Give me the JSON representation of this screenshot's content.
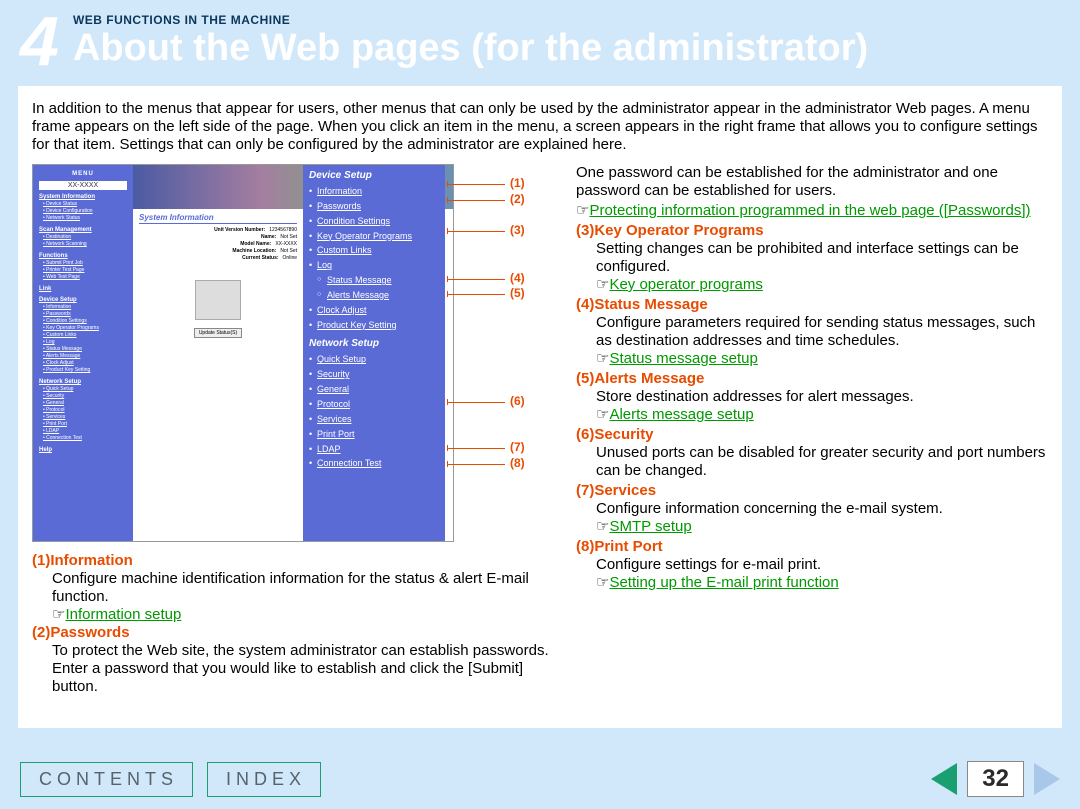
{
  "header": {
    "chapter_number": "4",
    "subtitle": "WEB FUNCTIONS IN THE MACHINE",
    "title": "About the Web pages (for the administrator)"
  },
  "intro": "In addition to the menus that appear for users, other menus that can only be used by the administrator appear in the administrator Web pages. A menu frame appears on the left side of the page. When you click an item in the menu, a screen appears in the right frame that allows you to configure settings for that item. Settings that can only be configured by the administrator are explained here.",
  "screenshot": {
    "menu_header": "MENU",
    "model": "XX-XXXX",
    "sidebar_groups": [
      {
        "title": "System Information",
        "items": [
          "Device Status",
          "Device Configuration",
          "Network Status"
        ]
      },
      {
        "title": "Scan Management",
        "items": [
          "Destination",
          "Network Scanning"
        ]
      },
      {
        "title": "Functions",
        "items": [
          "Submit Print Job",
          "Printer Test Page",
          "Web Test Page"
        ]
      },
      {
        "title": "Link",
        "items": []
      },
      {
        "title": "Device Setup",
        "items": [
          "Information",
          "Passwords",
          "Condition Settings",
          "Key Operator Programs",
          "Custom Links",
          "Log",
          "Status Message",
          "Alerts Message",
          "Clock Adjust",
          "Product Key Setting"
        ]
      },
      {
        "title": "Network Setup",
        "items": [
          "Quick Setup",
          "Security",
          "General",
          "Protocol",
          "Services",
          "Print Port",
          "LDAP",
          "Connection Test"
        ]
      },
      {
        "title": "Help",
        "items": []
      }
    ],
    "sys_info_title": "System Information",
    "sys_info_rows": [
      {
        "k": "Unit Version Number:",
        "v": "1234567890"
      },
      {
        "k": "Name:",
        "v": "Not Set"
      },
      {
        "k": "Model Name:",
        "v": "XX-XXXX"
      },
      {
        "k": "Machine Location:",
        "v": "Not Set"
      },
      {
        "k": "Current Status:",
        "v": "Online"
      }
    ],
    "update_btn": "Update Status(S)",
    "device_setup_h": "Device Setup",
    "device_setup_items": [
      "Information",
      "Passwords",
      "Condition Settings",
      "Key Operator Programs",
      "Custom Links",
      "Log"
    ],
    "device_setup_subs": [
      "Status Message",
      "Alerts Message"
    ],
    "device_setup_items2": [
      "Clock Adjust",
      "Product Key Setting"
    ],
    "network_setup_h": "Network Setup",
    "network_setup_items": [
      "Quick Setup",
      "Security",
      "General",
      "Protocol",
      "Services",
      "Print Port",
      "LDAP",
      "Connection Test"
    ]
  },
  "callouts": [
    "(1)",
    "(2)",
    "(3)",
    "(4)",
    "(5)",
    "(6)",
    "(7)",
    "(8)"
  ],
  "left_sections": [
    {
      "num": "(1)",
      "title": "Information",
      "body": "Configure machine identification information for the status & alert E-mail function.",
      "link": "Information setup"
    },
    {
      "num": "(2)",
      "title": "Passwords",
      "body": "To protect the Web site, the system administrator can establish passwords. Enter a password that you would like to establish and click the [Submit] button."
    }
  ],
  "right_intro": "One password can be established for the administrator and one password can be established for users.",
  "right_link1": "Protecting information programmed in the web page ([Passwords])",
  "right_sections": [
    {
      "num": "(3)",
      "title": "Key Operator Programs",
      "body": "Setting changes can be prohibited and interface settings can be configured.",
      "link": "Key operator programs"
    },
    {
      "num": "(4)",
      "title": "Status Message",
      "body": "Configure parameters required for sending status messages, such as destination addresses and time schedules.",
      "link": "Status message setup"
    },
    {
      "num": "(5)",
      "title": "Alerts Message",
      "body": "Store destination addresses for alert messages.",
      "link": "Alerts message setup"
    },
    {
      "num": "(6)",
      "title": "Security",
      "body": "Unused ports can be disabled for greater security and port numbers can be changed."
    },
    {
      "num": "(7)",
      "title": "Services",
      "body": "Configure information concerning the e-mail system.",
      "link": "SMTP setup"
    },
    {
      "num": "(8)",
      "title": "Print Port",
      "body": "Configure settings for e-mail print.",
      "link": "Setting up the E-mail print function"
    }
  ],
  "footer": {
    "contents": "CONTENTS",
    "index": "INDEX",
    "page": "32"
  },
  "colors": {
    "page_bg": "#d1e7fa",
    "accent_orange": "#e74c00",
    "link_green": "#009900",
    "menu_blue": "#5a6bd6",
    "footer_border": "#1aa070"
  }
}
